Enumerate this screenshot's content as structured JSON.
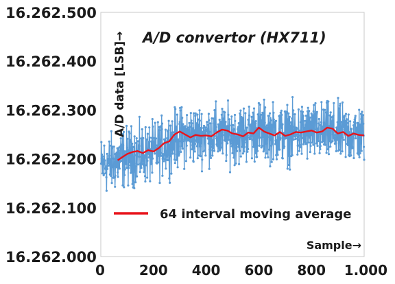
{
  "chart_data": {
    "type": "line",
    "title": "A/D convertor (HX711)",
    "xlabel": "Sample→",
    "ylabel": "A/D data [LSB]→",
    "xlim": [
      0,
      1000
    ],
    "ylim": [
      16262000,
      16262500
    ],
    "x_ticks": [
      0,
      200,
      400,
      600,
      800,
      1000
    ],
    "x_tick_labels": [
      "0",
      "200",
      "400",
      "600",
      "800",
      "1.000"
    ],
    "y_ticks": [
      16262000,
      16262100,
      16262200,
      16262300,
      16262400,
      16262500
    ],
    "y_tick_labels": [
      "16.262.000",
      "16.262.100",
      "16.262.200",
      "16.262.300",
      "16.262.400",
      "16.262.500"
    ],
    "grid": {
      "x": false,
      "y": false
    },
    "legend": {
      "position": "bottom-center",
      "entries": [
        "64 interval moving average"
      ]
    },
    "colors": {
      "raw": "#5b9bd5",
      "average": "#e8141b",
      "axis": "#c8c8c8"
    },
    "raw_series": {
      "n": 1000,
      "x_start": 1,
      "x_end": 1000,
      "y_min": 16262115,
      "y_max": 16262380,
      "approx_mean_values": [
        [
          1,
          16262185
        ],
        [
          60,
          16262195
        ],
        [
          100,
          16262205
        ],
        [
          200,
          16262212
        ],
        [
          250,
          16262230
        ],
        [
          300,
          16262245
        ],
        [
          400,
          16262250
        ],
        [
          500,
          16262248
        ],
        [
          600,
          16262258
        ],
        [
          700,
          16262250
        ],
        [
          800,
          16262255
        ],
        [
          900,
          16262252
        ],
        [
          1000,
          16262250
        ]
      ]
    },
    "series": [
      {
        "name": "64 interval moving average",
        "x": [
          64,
          80,
          100,
          120,
          140,
          160,
          180,
          200,
          220,
          240,
          260,
          280,
          300,
          320,
          340,
          360,
          380,
          400,
          420,
          440,
          460,
          480,
          500,
          520,
          540,
          560,
          580,
          600,
          620,
          640,
          660,
          680,
          700,
          720,
          740,
          760,
          780,
          800,
          820,
          840,
          860,
          880,
          900,
          920,
          940,
          960,
          980,
          1000
        ],
        "values": [
          16262197,
          16262203,
          16262210,
          16262214,
          16262216,
          16262212,
          16262218,
          16262215,
          16262222,
          16262232,
          16262236,
          16262250,
          16262256,
          16262250,
          16262244,
          16262249,
          16262247,
          16262248,
          16262246,
          16262254,
          16262260,
          16262258,
          16262252,
          16262250,
          16262246,
          16262254,
          16262252,
          16262264,
          16262256,
          16262252,
          16262248,
          16262255,
          16262247,
          16262250,
          16262255,
          16262254,
          16262256,
          16262258,
          16262254,
          16262256,
          16262264,
          16262262,
          16262252,
          16262255,
          16262247,
          16262252,
          16262249,
          16262248
        ]
      }
    ]
  }
}
